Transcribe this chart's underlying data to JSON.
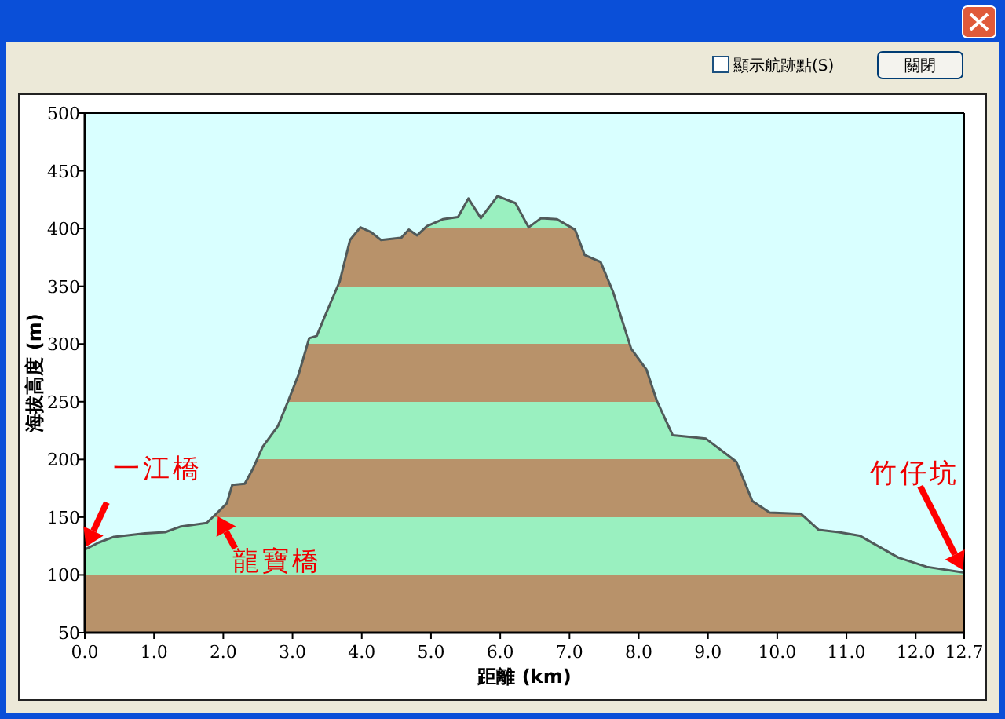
{
  "chart_data": {
    "type": "area",
    "xlabel": "距離 (km)",
    "ylabel": "海拔高度 (m)",
    "color": "#9af0c0",
    "xlim": [
      0,
      12.7
    ],
    "ylim": [
      50,
      500
    ],
    "xticks": [
      {
        "value": 0,
        "label": "0.0"
      },
      {
        "value": 1,
        "label": "1.0"
      },
      {
        "value": 2,
        "label": "2.0"
      },
      {
        "value": 3,
        "label": "3.0"
      },
      {
        "value": 4,
        "label": "4.0"
      },
      {
        "value": 5,
        "label": "5.0"
      },
      {
        "value": 6,
        "label": "6.0"
      },
      {
        "value": 7,
        "label": "7.0"
      },
      {
        "value": 8,
        "label": "8.0"
      },
      {
        "value": 9,
        "label": "9.0"
      },
      {
        "value": 10,
        "label": "10.0"
      },
      {
        "value": 11,
        "label": "11.0"
      },
      {
        "value": 12,
        "label": "12.0"
      },
      {
        "value": 12.7,
        "label": "12.7"
      }
    ],
    "yticks": [
      50,
      100,
      150,
      200,
      250,
      300,
      350,
      400,
      450,
      500
    ],
    "grid": false,
    "legend": false,
    "x": [
      0,
      0.2,
      0.42,
      0.87,
      1.16,
      1.39,
      1.76,
      1.9,
      2.05,
      2.13,
      2.31,
      2.42,
      2.57,
      2.79,
      2.94,
      3.09,
      3.24,
      3.35,
      3.46,
      3.68,
      3.83,
      3.98,
      4.13,
      4.28,
      4.57,
      4.68,
      4.8,
      4.94,
      5.17,
      5.39,
      5.54,
      5.72,
      5.96,
      6.22,
      6.41,
      6.59,
      6.82,
      7.08,
      7.22,
      7.45,
      7.63,
      7.89,
      8.11,
      8.26,
      8.49,
      8.67,
      8.97,
      9.41,
      9.64,
      9.89,
      10.34,
      10.6,
      10.89,
      11.19,
      11.75,
      12.16,
      12.7
    ],
    "values": [
      122,
      128,
      133,
      136,
      137,
      142,
      145,
      153,
      162,
      178,
      179,
      191,
      211,
      229,
      251,
      274,
      305,
      307,
      323,
      354,
      390,
      401,
      397,
      390,
      392,
      399,
      394,
      402,
      408,
      410,
      426,
      409,
      428,
      422,
      401,
      409,
      408,
      399,
      377,
      371,
      345,
      296,
      278,
      251,
      221,
      220,
      218,
      198,
      164,
      154,
      153,
      139,
      137,
      134,
      115,
      107,
      102
    ],
    "annotations": [
      "一江橋",
      "龍寶橋",
      "竹仔坑",
      "顯示航跡點(S)",
      "關閉"
    ]
  }
}
